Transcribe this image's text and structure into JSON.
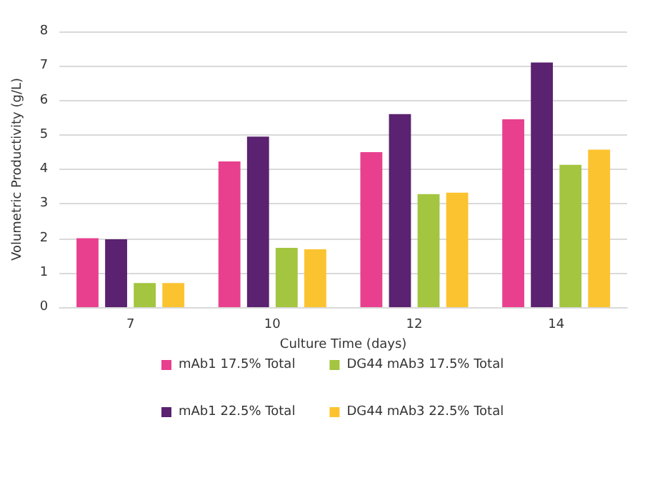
{
  "chart_data": {
    "type": "bar",
    "xlabel": "Culture Time (days)",
    "ylabel": "Volumetric Productivity (g/L)",
    "categories": [
      "7",
      "10",
      "12",
      "14"
    ],
    "series": [
      {
        "name": "mAb1 17.5% Total",
        "color": "#e8408e",
        "values": [
          2.0,
          4.23,
          4.5,
          5.45
        ]
      },
      {
        "name": "mAb1 22.5% Total",
        "color": "#5a2270",
        "values": [
          1.97,
          4.95,
          5.6,
          7.1
        ]
      },
      {
        "name": "DG44 mAb3 17.5% Total",
        "color": "#a3c540",
        "values": [
          0.7,
          1.72,
          3.28,
          4.13
        ]
      },
      {
        "name": "DG44 mAb3 22.5% Total",
        "color": "#fcc330",
        "values": [
          0.7,
          1.68,
          3.32,
          4.57
        ]
      }
    ],
    "ylim": [
      0,
      8
    ],
    "yticks": [
      0,
      1,
      2,
      3,
      4,
      5,
      6,
      7,
      8
    ],
    "grid": "y",
    "legend": "bottom"
  }
}
